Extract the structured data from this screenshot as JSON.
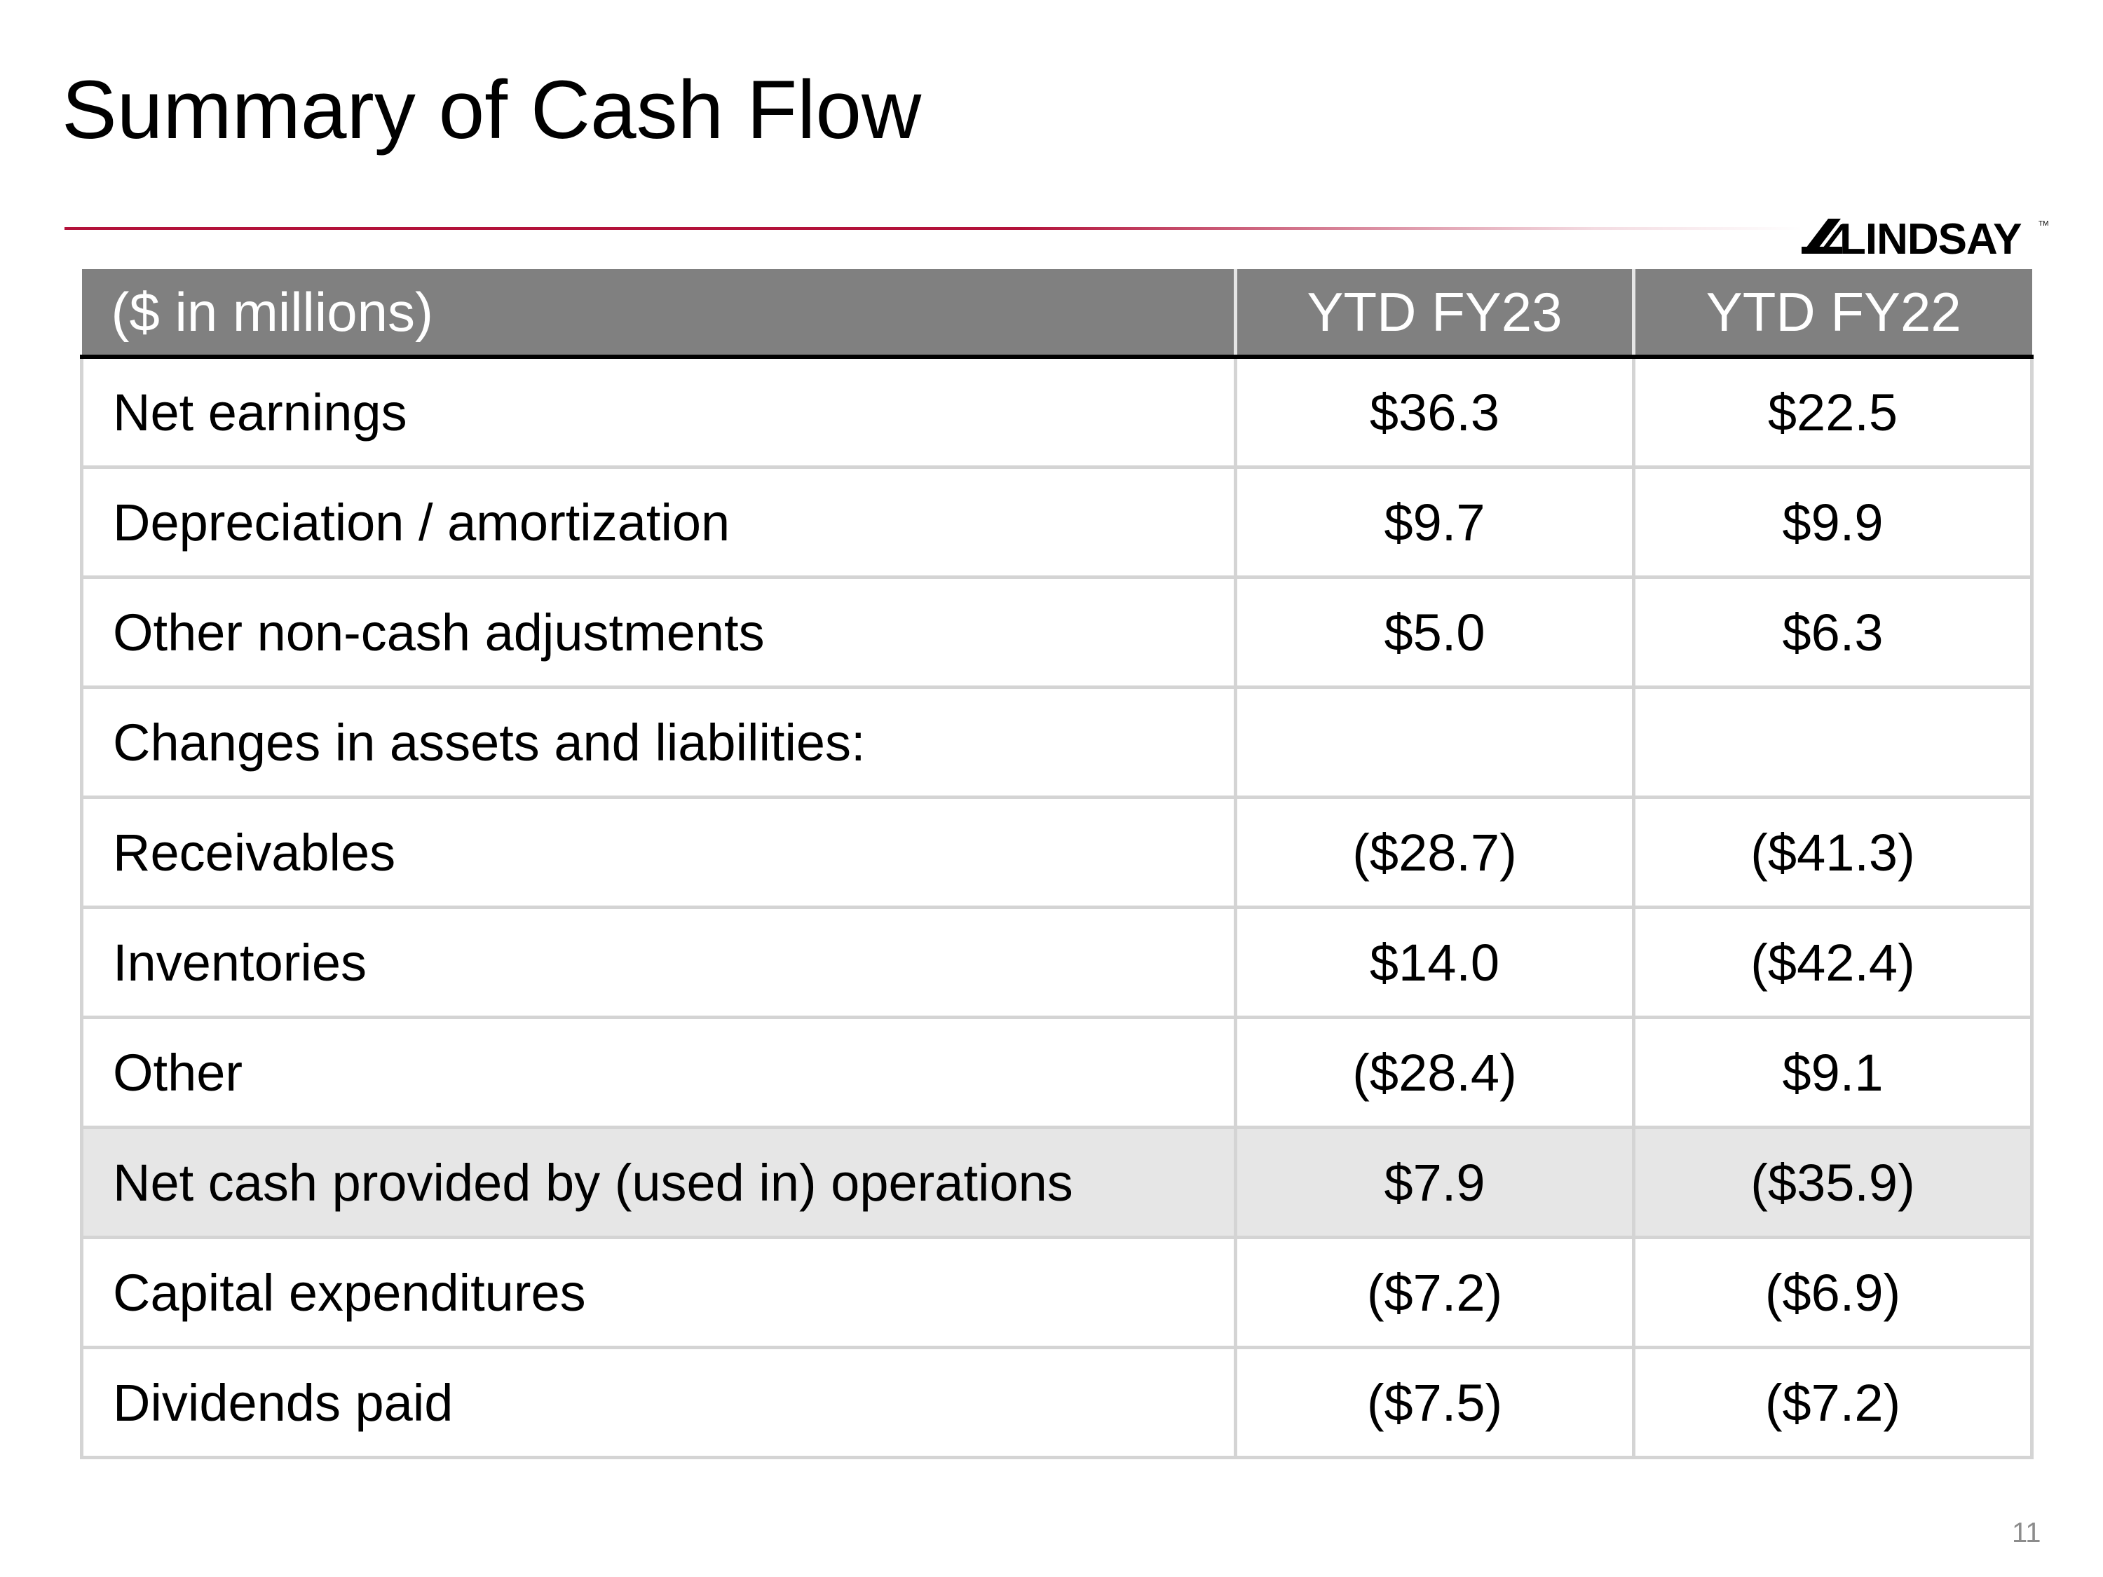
{
  "slide": {
    "title": "Summary of Cash Flow",
    "page_number": "11"
  },
  "logo": {
    "text": "LINDSAY",
    "trademark": "TM"
  },
  "colors": {
    "accent": "#b3123a",
    "header_bg": "#808080",
    "highlight_bg": "#e6e6e6",
    "grid": "#d4d4d4"
  },
  "table": {
    "headers": [
      "($ in millions)",
      "YTD FY23",
      "YTD FY22"
    ],
    "rows": [
      {
        "label": "Net earnings",
        "fy23": "$36.3",
        "fy22": "$22.5"
      },
      {
        "label": "Depreciation / amortization",
        "fy23": "$9.7",
        "fy22": "$9.9"
      },
      {
        "label": "Other non-cash adjustments",
        "fy23": "$5.0",
        "fy22": "$6.3"
      },
      {
        "label": "Changes in assets and liabilities:",
        "fy23": "",
        "fy22": ""
      },
      {
        "label": "Receivables",
        "fy23": "($28.7)",
        "fy22": "($41.3)"
      },
      {
        "label": "Inventories",
        "fy23": "$14.0",
        "fy22": "($42.4)"
      },
      {
        "label": "Other",
        "fy23": "($28.4)",
        "fy22": "$9.1"
      },
      {
        "label": "Net cash provided by (used in) operations",
        "fy23": "$7.9",
        "fy22": "($35.9)"
      },
      {
        "label": "Capital expenditures",
        "fy23": "($7.2)",
        "fy22": "($6.9)"
      },
      {
        "label": "Dividends paid",
        "fy23": "($7.5)",
        "fy22": "($7.2)"
      }
    ]
  }
}
